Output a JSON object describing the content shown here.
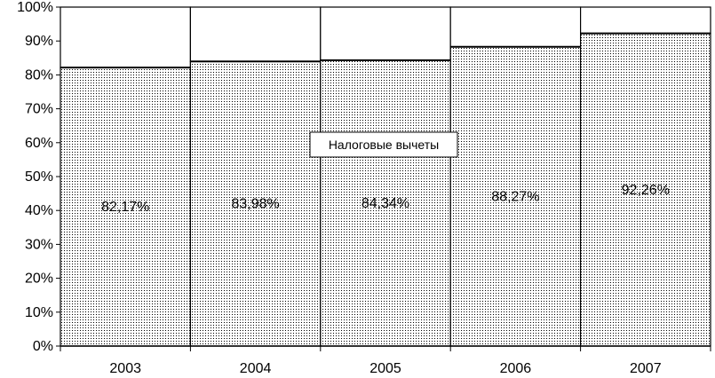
{
  "chart_data": {
    "type": "bar",
    "stacked_percent": true,
    "categories": [
      "2003",
      "2004",
      "2005",
      "2006",
      "2007"
    ],
    "series": [
      {
        "name": "Налоговые вычеты",
        "values": [
          82.17,
          83.98,
          84.34,
          88.27,
          92.26
        ],
        "labels": [
          "82,17%",
          "83,98%",
          "84,34%",
          "88,27%",
          "92,26%"
        ],
        "fill": "dotted",
        "color": "#000000"
      }
    ],
    "remainder_color": "#ffffff",
    "ylim": [
      0,
      100
    ],
    "yticks": [
      0,
      10,
      20,
      30,
      40,
      50,
      60,
      70,
      80,
      90,
      100
    ],
    "ytick_labels": [
      "0%",
      "10%",
      "20%",
      "30%",
      "40%",
      "50%",
      "60%",
      "70%",
      "80%",
      "90%",
      "100%"
    ],
    "legend": {
      "text": "Налоговые вычеты",
      "placement": "center"
    },
    "grid": false
  }
}
